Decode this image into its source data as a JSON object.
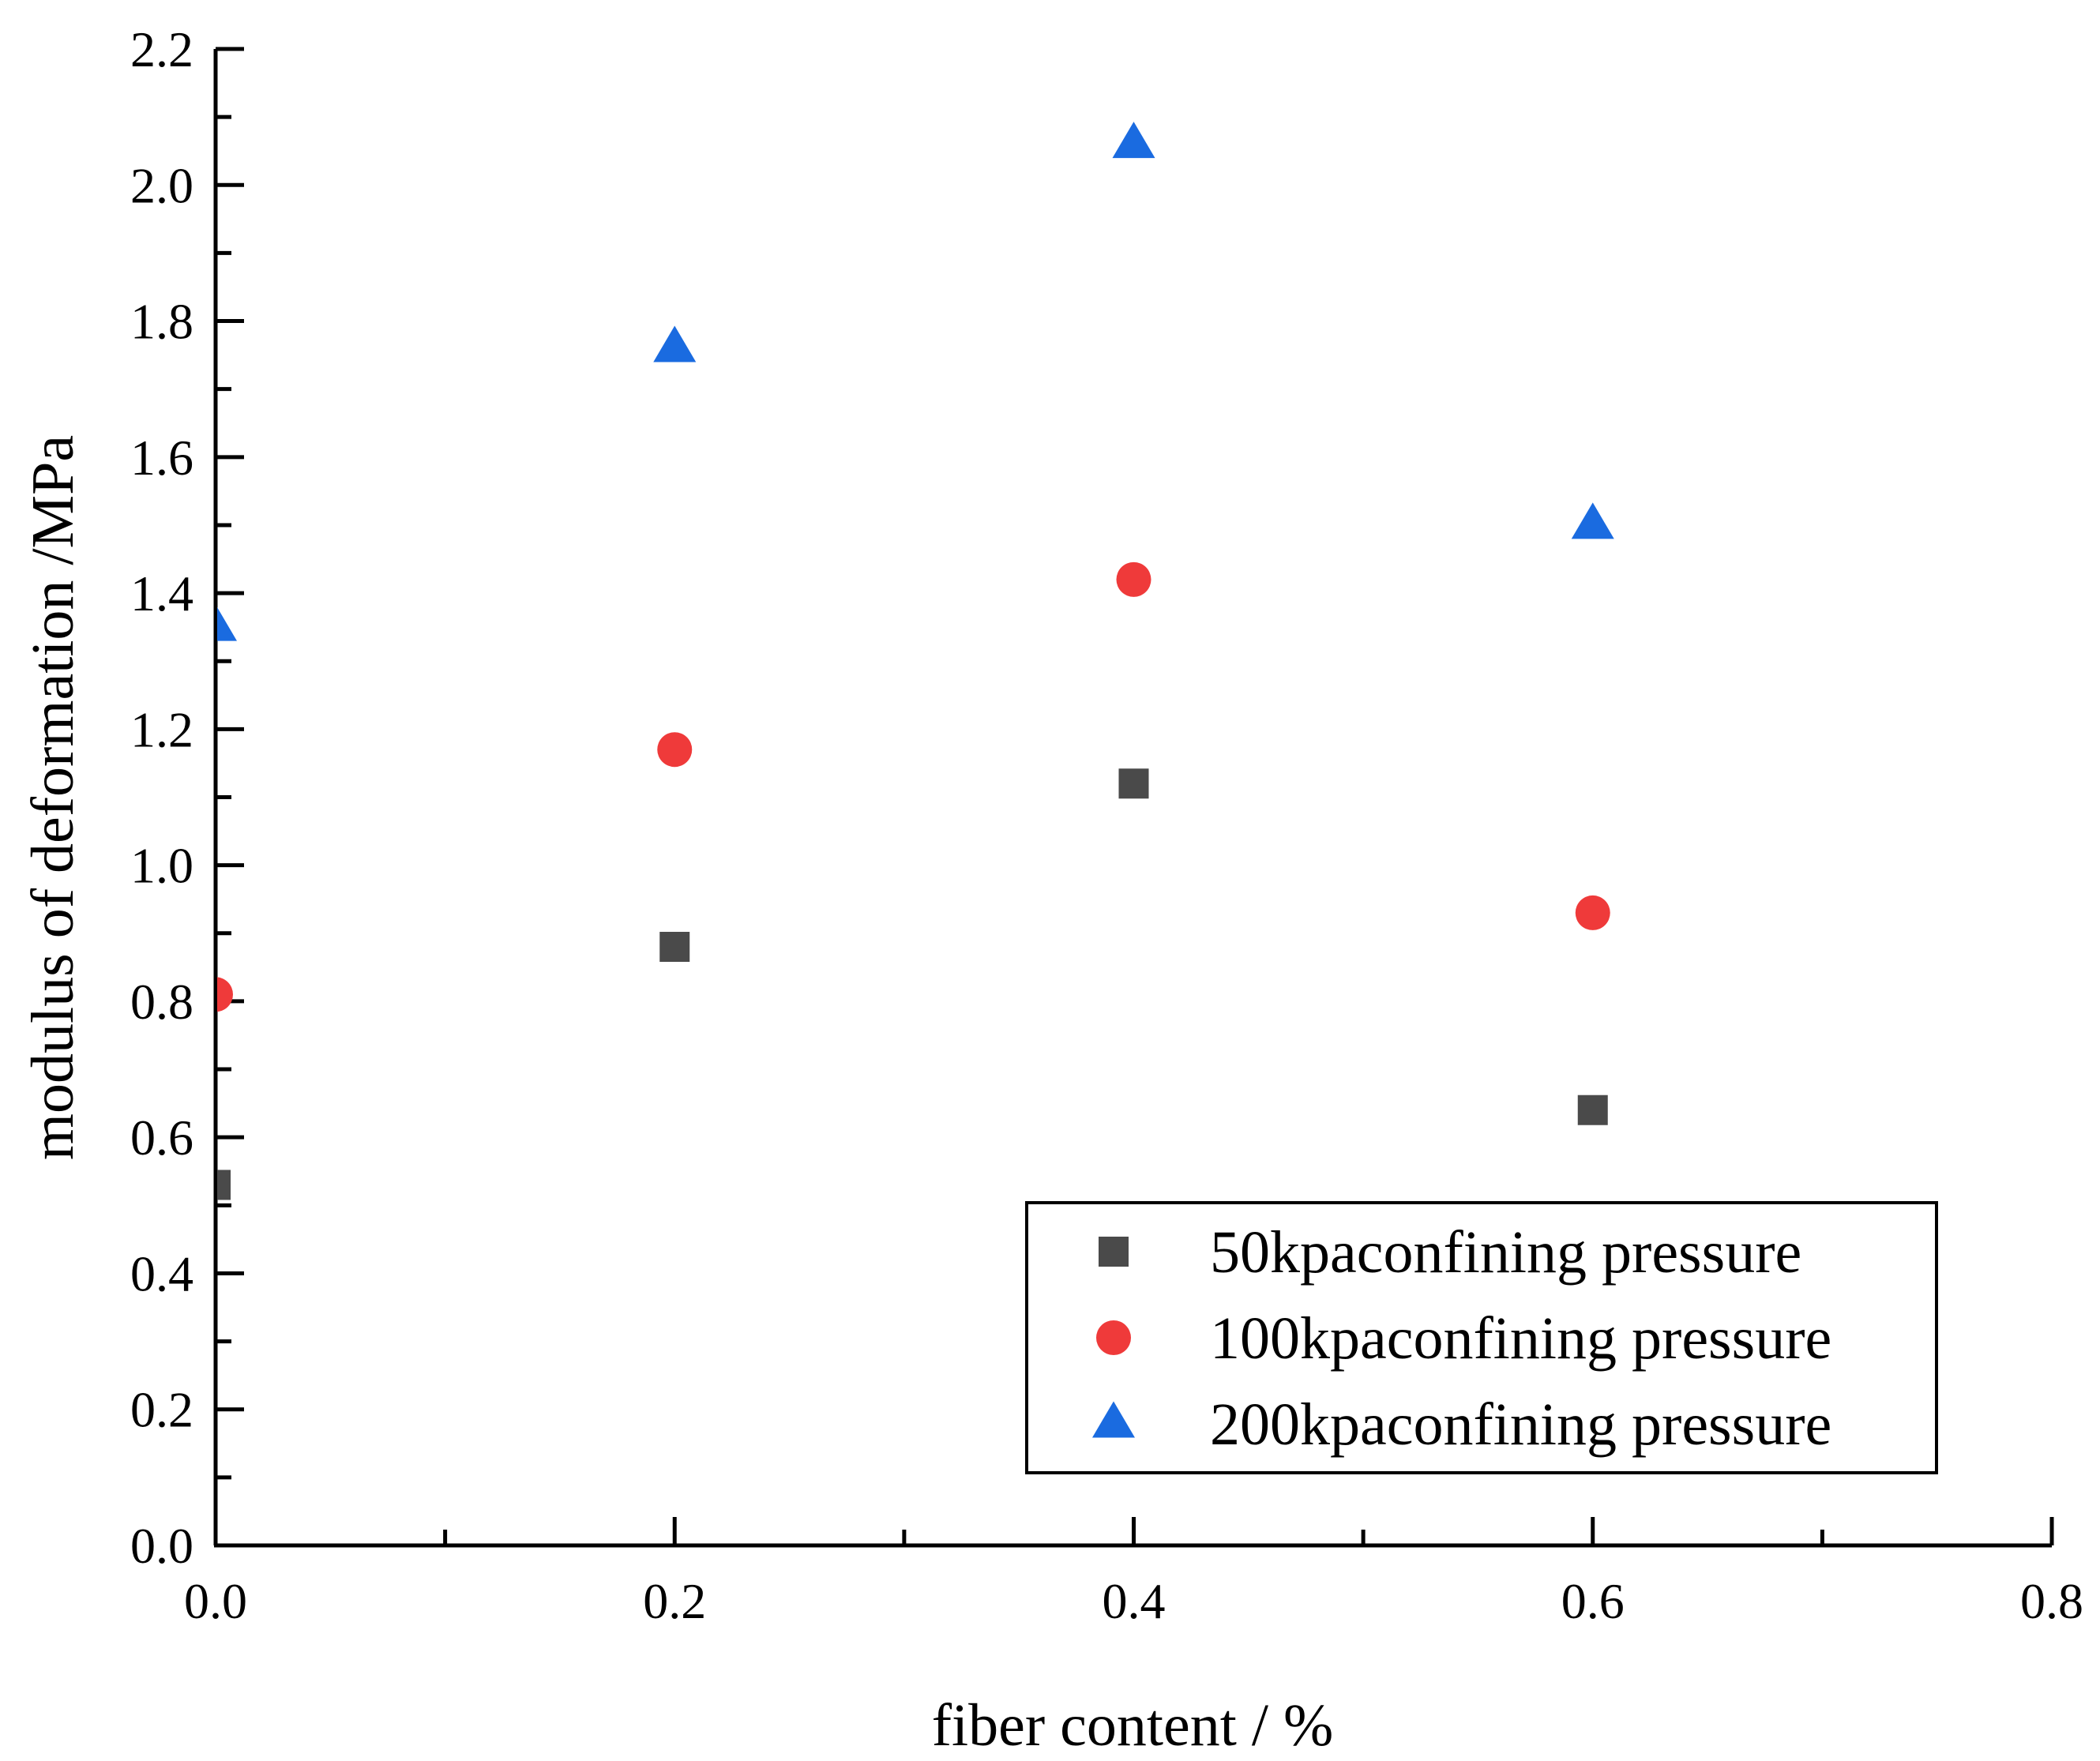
{
  "chart_data": {
    "type": "scatter",
    "title": "",
    "xlabel": "fiber content / %",
    "ylabel": "modulus of deformation /MPa",
    "xlim": [
      0.0,
      0.8
    ],
    "ylim": [
      0.0,
      2.2
    ],
    "x_ticks": [
      "0.0",
      "0.2",
      "0.4",
      "0.6",
      "0.8"
    ],
    "y_ticks": [
      "0.0",
      "0.2",
      "0.4",
      "0.6",
      "0.8",
      "1.0",
      "1.2",
      "1.4",
      "1.6",
      "1.8",
      "2.0",
      "2.2"
    ],
    "grid": false,
    "legend_position": "bottom-right",
    "series": [
      {
        "name": "50kpaconfining pressure",
        "marker": "square",
        "color": "#4a4a4a",
        "x": [
          0.0,
          0.2,
          0.4,
          0.6
        ],
        "y": [
          0.53,
          0.88,
          1.12,
          0.64
        ]
      },
      {
        "name": "100kpaconfining pressure",
        "marker": "circle",
        "color": "#ef3a3a",
        "x": [
          0.0,
          0.2,
          0.4,
          0.6
        ],
        "y": [
          0.81,
          1.17,
          1.42,
          0.93
        ]
      },
      {
        "name": "200kpaconfining pressure",
        "marker": "triangle",
        "color": "#1a6be0",
        "x": [
          0.0,
          0.2,
          0.4,
          0.6
        ],
        "y": [
          1.35,
          1.76,
          2.06,
          1.5
        ]
      }
    ]
  }
}
